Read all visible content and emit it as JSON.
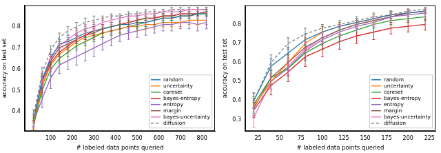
{
  "chart_data": [
    {
      "type": "line",
      "x_label": "# labeled data points queried",
      "y_label": "accuracy on test set",
      "x": [
        20,
        60,
        100,
        140,
        180,
        220,
        260,
        300,
        340,
        380,
        420,
        460,
        500,
        540,
        580,
        620,
        660,
        700,
        740,
        780,
        820
      ],
      "xlim": [
        -20,
        860
      ],
      "xticks": [
        100,
        200,
        300,
        400,
        500,
        600,
        700,
        800
      ],
      "ylim": [
        0.31,
        0.9
      ],
      "yticks": [
        0.4,
        0.5,
        0.6,
        0.7,
        0.8
      ],
      "grid": false,
      "legend": "lower right",
      "series": [
        {
          "name": "random",
          "color": "#1f77b4",
          "values": [
            0.36,
            0.55,
            0.65,
            0.72,
            0.73,
            0.75,
            0.77,
            0.78,
            0.79,
            0.8,
            0.81,
            0.81,
            0.82,
            0.82,
            0.83,
            0.84,
            0.84,
            0.85,
            0.85,
            0.86,
            0.86
          ],
          "errors": [
            0.03,
            0.03,
            0.02,
            0.02,
            0.02,
            0.02,
            0.02,
            0.02,
            0.02,
            0.02,
            0.02,
            0.02,
            0.02,
            0.02,
            0.02,
            0.02,
            0.01,
            0.01,
            0.01,
            0.01,
            0.01
          ]
        },
        {
          "name": "uncertainty",
          "color": "#ff7f0e",
          "values": [
            0.35,
            0.52,
            0.62,
            0.67,
            0.7,
            0.73,
            0.75,
            0.76,
            0.77,
            0.78,
            0.79,
            0.8,
            0.8,
            0.81,
            0.81,
            0.82,
            0.82,
            0.82,
            0.83,
            0.83,
            0.83
          ],
          "errors": [
            0.03,
            0.03,
            0.03,
            0.03,
            0.02,
            0.02,
            0.02,
            0.02,
            0.02,
            0.02,
            0.02,
            0.02,
            0.02,
            0.02,
            0.02,
            0.02,
            0.02,
            0.02,
            0.02,
            0.02,
            0.02
          ]
        },
        {
          "name": "coreset",
          "color": "#2ca02c",
          "values": [
            0.34,
            0.5,
            0.6,
            0.65,
            0.68,
            0.71,
            0.73,
            0.75,
            0.77,
            0.78,
            0.79,
            0.8,
            0.81,
            0.82,
            0.83,
            0.84,
            0.84,
            0.85,
            0.85,
            0.86,
            0.86
          ],
          "errors": [
            0.03,
            0.03,
            0.03,
            0.02,
            0.02,
            0.02,
            0.02,
            0.02,
            0.02,
            0.02,
            0.02,
            0.02,
            0.02,
            0.02,
            0.02,
            0.01,
            0.01,
            0.01,
            0.01,
            0.01,
            0.01
          ]
        },
        {
          "name": "bayes-entropy",
          "color": "#d62728",
          "values": [
            0.33,
            0.52,
            0.63,
            0.68,
            0.71,
            0.74,
            0.76,
            0.78,
            0.79,
            0.8,
            0.81,
            0.82,
            0.83,
            0.84,
            0.84,
            0.85,
            0.85,
            0.86,
            0.86,
            0.86,
            0.87
          ],
          "errors": [
            0.03,
            0.03,
            0.03,
            0.02,
            0.02,
            0.02,
            0.02,
            0.02,
            0.02,
            0.02,
            0.02,
            0.02,
            0.02,
            0.01,
            0.01,
            0.01,
            0.01,
            0.01,
            0.01,
            0.01,
            0.01
          ]
        },
        {
          "name": "entropy",
          "color": "#9467bd",
          "values": [
            0.35,
            0.46,
            0.56,
            0.62,
            0.64,
            0.66,
            0.68,
            0.7,
            0.72,
            0.74,
            0.76,
            0.77,
            0.78,
            0.79,
            0.8,
            0.81,
            0.81,
            0.82,
            0.82,
            0.81,
            0.82
          ],
          "errors": [
            0.04,
            0.04,
            0.05,
            0.04,
            0.04,
            0.04,
            0.04,
            0.04,
            0.03,
            0.03,
            0.03,
            0.03,
            0.03,
            0.03,
            0.03,
            0.03,
            0.03,
            0.03,
            0.03,
            0.03,
            0.03
          ]
        },
        {
          "name": "margin",
          "color": "#8c564b",
          "values": [
            0.36,
            0.54,
            0.64,
            0.7,
            0.72,
            0.74,
            0.76,
            0.77,
            0.79,
            0.8,
            0.81,
            0.82,
            0.83,
            0.84,
            0.84,
            0.85,
            0.85,
            0.86,
            0.86,
            0.86,
            0.87
          ],
          "errors": [
            0.03,
            0.03,
            0.02,
            0.02,
            0.02,
            0.02,
            0.02,
            0.02,
            0.02,
            0.02,
            0.02,
            0.02,
            0.01,
            0.01,
            0.01,
            0.01,
            0.01,
            0.01,
            0.01,
            0.01,
            0.01
          ]
        },
        {
          "name": "bayes-uncertainty",
          "color": "#e377c2",
          "values": [
            0.36,
            0.55,
            0.66,
            0.71,
            0.74,
            0.77,
            0.79,
            0.8,
            0.82,
            0.83,
            0.84,
            0.85,
            0.85,
            0.86,
            0.86,
            0.87,
            0.87,
            0.87,
            0.88,
            0.88,
            0.88
          ],
          "errors": [
            0.03,
            0.03,
            0.02,
            0.02,
            0.02,
            0.02,
            0.02,
            0.02,
            0.02,
            0.02,
            0.01,
            0.01,
            0.01,
            0.01,
            0.01,
            0.01,
            0.01,
            0.01,
            0.01,
            0.01,
            0.01
          ]
        },
        {
          "name": "diffusion",
          "color": "#7f7f7f",
          "line_style": "dashed",
          "values": [
            0.38,
            0.58,
            0.69,
            0.75,
            0.78,
            0.8,
            0.82,
            0.83,
            0.84,
            0.85,
            0.85,
            0.86,
            0.86,
            0.87,
            0.87,
            0.87,
            0.88,
            0.88,
            0.88,
            0.88,
            0.88
          ],
          "errors": [
            0.03,
            0.03,
            0.02,
            0.02,
            0.02,
            0.02,
            0.02,
            0.02,
            0.01,
            0.01,
            0.01,
            0.01,
            0.01,
            0.01,
            0.01,
            0.01,
            0.01,
            0.01,
            0.01,
            0.01,
            0.01
          ]
        }
      ]
    },
    {
      "type": "line",
      "x_label": "# labeled data points queried",
      "y_label": "accuracy on test set",
      "x": [
        20,
        40,
        60,
        80,
        100,
        120,
        140,
        160,
        180,
        200,
        220
      ],
      "xlim": [
        10,
        232
      ],
      "xticks": [
        25,
        50,
        75,
        100,
        125,
        150,
        175,
        200,
        225
      ],
      "ylim": [
        0.24,
        0.9
      ],
      "yticks": [
        0.3,
        0.4,
        0.5,
        0.6,
        0.7,
        0.8
      ],
      "grid": false,
      "legend": "lower right",
      "series": [
        {
          "name": "random",
          "color": "#1f77b4",
          "values": [
            0.4,
            0.58,
            0.65,
            0.72,
            0.76,
            0.79,
            0.81,
            0.83,
            0.85,
            0.86,
            0.87
          ],
          "errors": [
            0.04,
            0.04,
            0.03,
            0.03,
            0.03,
            0.02,
            0.02,
            0.02,
            0.02,
            0.02,
            0.01
          ]
        },
        {
          "name": "uncertainty",
          "color": "#ff7f0e",
          "values": [
            0.37,
            0.5,
            0.6,
            0.7,
            0.76,
            0.79,
            0.81,
            0.83,
            0.85,
            0.86,
            0.87
          ],
          "errors": [
            0.04,
            0.04,
            0.04,
            0.03,
            0.03,
            0.02,
            0.02,
            0.02,
            0.02,
            0.02,
            0.01
          ]
        },
        {
          "name": "coreset",
          "color": "#2ca02c",
          "values": [
            0.38,
            0.52,
            0.57,
            0.65,
            0.7,
            0.74,
            0.77,
            0.8,
            0.82,
            0.83,
            0.84
          ],
          "errors": [
            0.04,
            0.04,
            0.04,
            0.04,
            0.03,
            0.03,
            0.03,
            0.02,
            0.02,
            0.02,
            0.02
          ]
        },
        {
          "name": "bayes-entropy",
          "color": "#d62728",
          "values": [
            0.35,
            0.48,
            0.55,
            0.63,
            0.67,
            0.71,
            0.74,
            0.76,
            0.78,
            0.79,
            0.8
          ],
          "errors": [
            0.04,
            0.05,
            0.05,
            0.05,
            0.04,
            0.04,
            0.04,
            0.04,
            0.03,
            0.03,
            0.03
          ]
        },
        {
          "name": "entropy",
          "color": "#9467bd",
          "values": [
            0.37,
            0.5,
            0.57,
            0.66,
            0.72,
            0.76,
            0.79,
            0.81,
            0.84,
            0.85,
            0.86
          ],
          "errors": [
            0.04,
            0.04,
            0.04,
            0.04,
            0.03,
            0.03,
            0.03,
            0.02,
            0.02,
            0.02,
            0.02
          ]
        },
        {
          "name": "margin",
          "color": "#8c564b",
          "values": [
            0.36,
            0.52,
            0.6,
            0.68,
            0.73,
            0.77,
            0.8,
            0.82,
            0.84,
            0.86,
            0.87
          ],
          "errors": [
            0.04,
            0.04,
            0.04,
            0.03,
            0.03,
            0.03,
            0.02,
            0.02,
            0.02,
            0.02,
            0.01
          ]
        },
        {
          "name": "bayes-uncertainty",
          "color": "#e377c2",
          "values": [
            0.31,
            0.5,
            0.58,
            0.67,
            0.73,
            0.77,
            0.8,
            0.82,
            0.84,
            0.86,
            0.87
          ],
          "errors": [
            0.05,
            0.04,
            0.04,
            0.04,
            0.03,
            0.03,
            0.02,
            0.02,
            0.02,
            0.02,
            0.01
          ]
        },
        {
          "name": "diffusion",
          "color": "#7f7f7f",
          "line_style": "dashed",
          "values": [
            0.4,
            0.6,
            0.7,
            0.75,
            0.78,
            0.8,
            0.82,
            0.84,
            0.85,
            0.87,
            0.88
          ],
          "errors": [
            0.04,
            0.04,
            0.03,
            0.03,
            0.02,
            0.02,
            0.02,
            0.02,
            0.02,
            0.01,
            0.01
          ]
        }
      ]
    }
  ]
}
